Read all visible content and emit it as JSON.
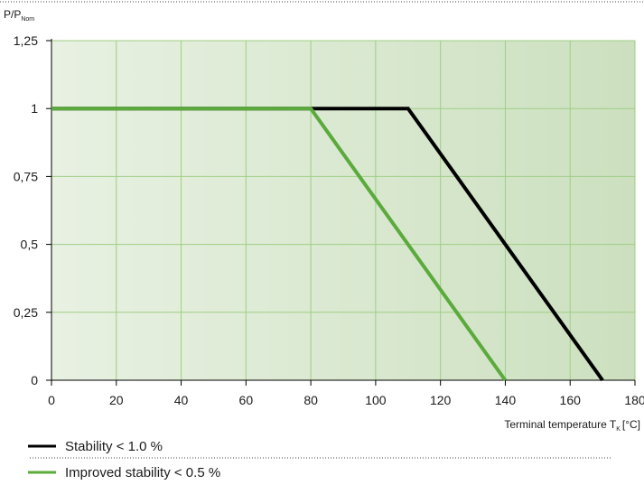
{
  "chart_data": {
    "type": "line",
    "ylabel": {
      "main": "P/P",
      "sub": "Nom"
    },
    "xlabel": {
      "main": "Terminal temperature  T",
      "sub": "K",
      "unit": "[°C]"
    },
    "xlim": [
      0,
      180
    ],
    "ylim": [
      0,
      1.25
    ],
    "x_ticks": [
      "0",
      "20",
      "40",
      "60",
      "80",
      "100",
      "120",
      "140",
      "160",
      "180"
    ],
    "y_ticks": [
      "0",
      "0,25",
      "0,5",
      "0,75",
      "1",
      "1,25"
    ],
    "grid": true,
    "series": [
      {
        "name": "Stability < 1.0 %",
        "color": "#000000",
        "x": [
          0,
          110,
          170
        ],
        "y": [
          1,
          1,
          0
        ]
      },
      {
        "name": "Improved stability < 0.5 %",
        "color": "#5aaa3c",
        "x": [
          0,
          80,
          140
        ],
        "y": [
          1,
          1,
          0
        ]
      }
    ],
    "legend": "bottom-left",
    "colors": {
      "plot_bg_light": "#e8f1e2",
      "plot_bg_dark": "#cce0bf",
      "grid": "#9fce86",
      "axis": "#000000"
    }
  }
}
